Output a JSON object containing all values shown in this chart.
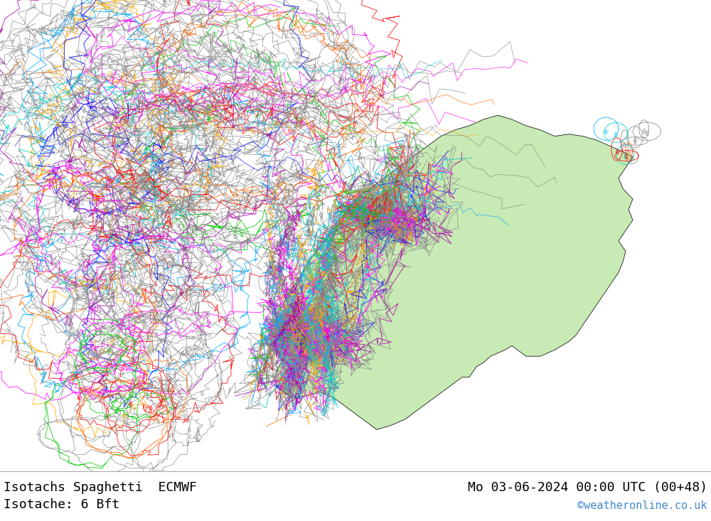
{
  "title_left": "Isotachs Spaghetti  ECMWF",
  "title_right": "Mo 03-06-2024 00:00 UTC (00+48)",
  "subtitle": "Isotache: 6 Bft",
  "watermark": "©weatheronline.co.uk",
  "background_ocean": "#d3d3d3",
  "background_land": "#c8eab4",
  "background_land2": "#c8eac8",
  "border_color": "#1a1a1a",
  "title_fontsize": 13,
  "watermark_color": "#4488cc",
  "fig_width": 10.0,
  "fig_height": 7.33,
  "dpi": 100,
  "lon_min": -15.0,
  "lon_max": 35.0,
  "lat_min": 54.0,
  "lat_max": 76.5,
  "label_fontsize": 6,
  "spaghetti_colors_cycle": [
    "#888888",
    "#888888",
    "#888888",
    "#888888",
    "#888888",
    "#888888",
    "#888888",
    "#888888",
    "#888888",
    "#888888",
    "#888888",
    "#888888",
    "#888888",
    "#888888",
    "#888888",
    "#888888",
    "#888888",
    "#888888",
    "#888888",
    "#888888",
    "#ff00ff",
    "#ff0000",
    "#0000ff",
    "#00aaff",
    "#ffaa00",
    "#00cc00",
    "#ff6600",
    "#aa00aa",
    "#00cccc",
    "#ff00ff",
    "#ff0000",
    "#0000ff",
    "#00aaff",
    "#ffaa00",
    "#00cc00",
    "#ff6600",
    "#aa00aa",
    "#00cccc",
    "#ff00ff",
    "#ff0000"
  ]
}
